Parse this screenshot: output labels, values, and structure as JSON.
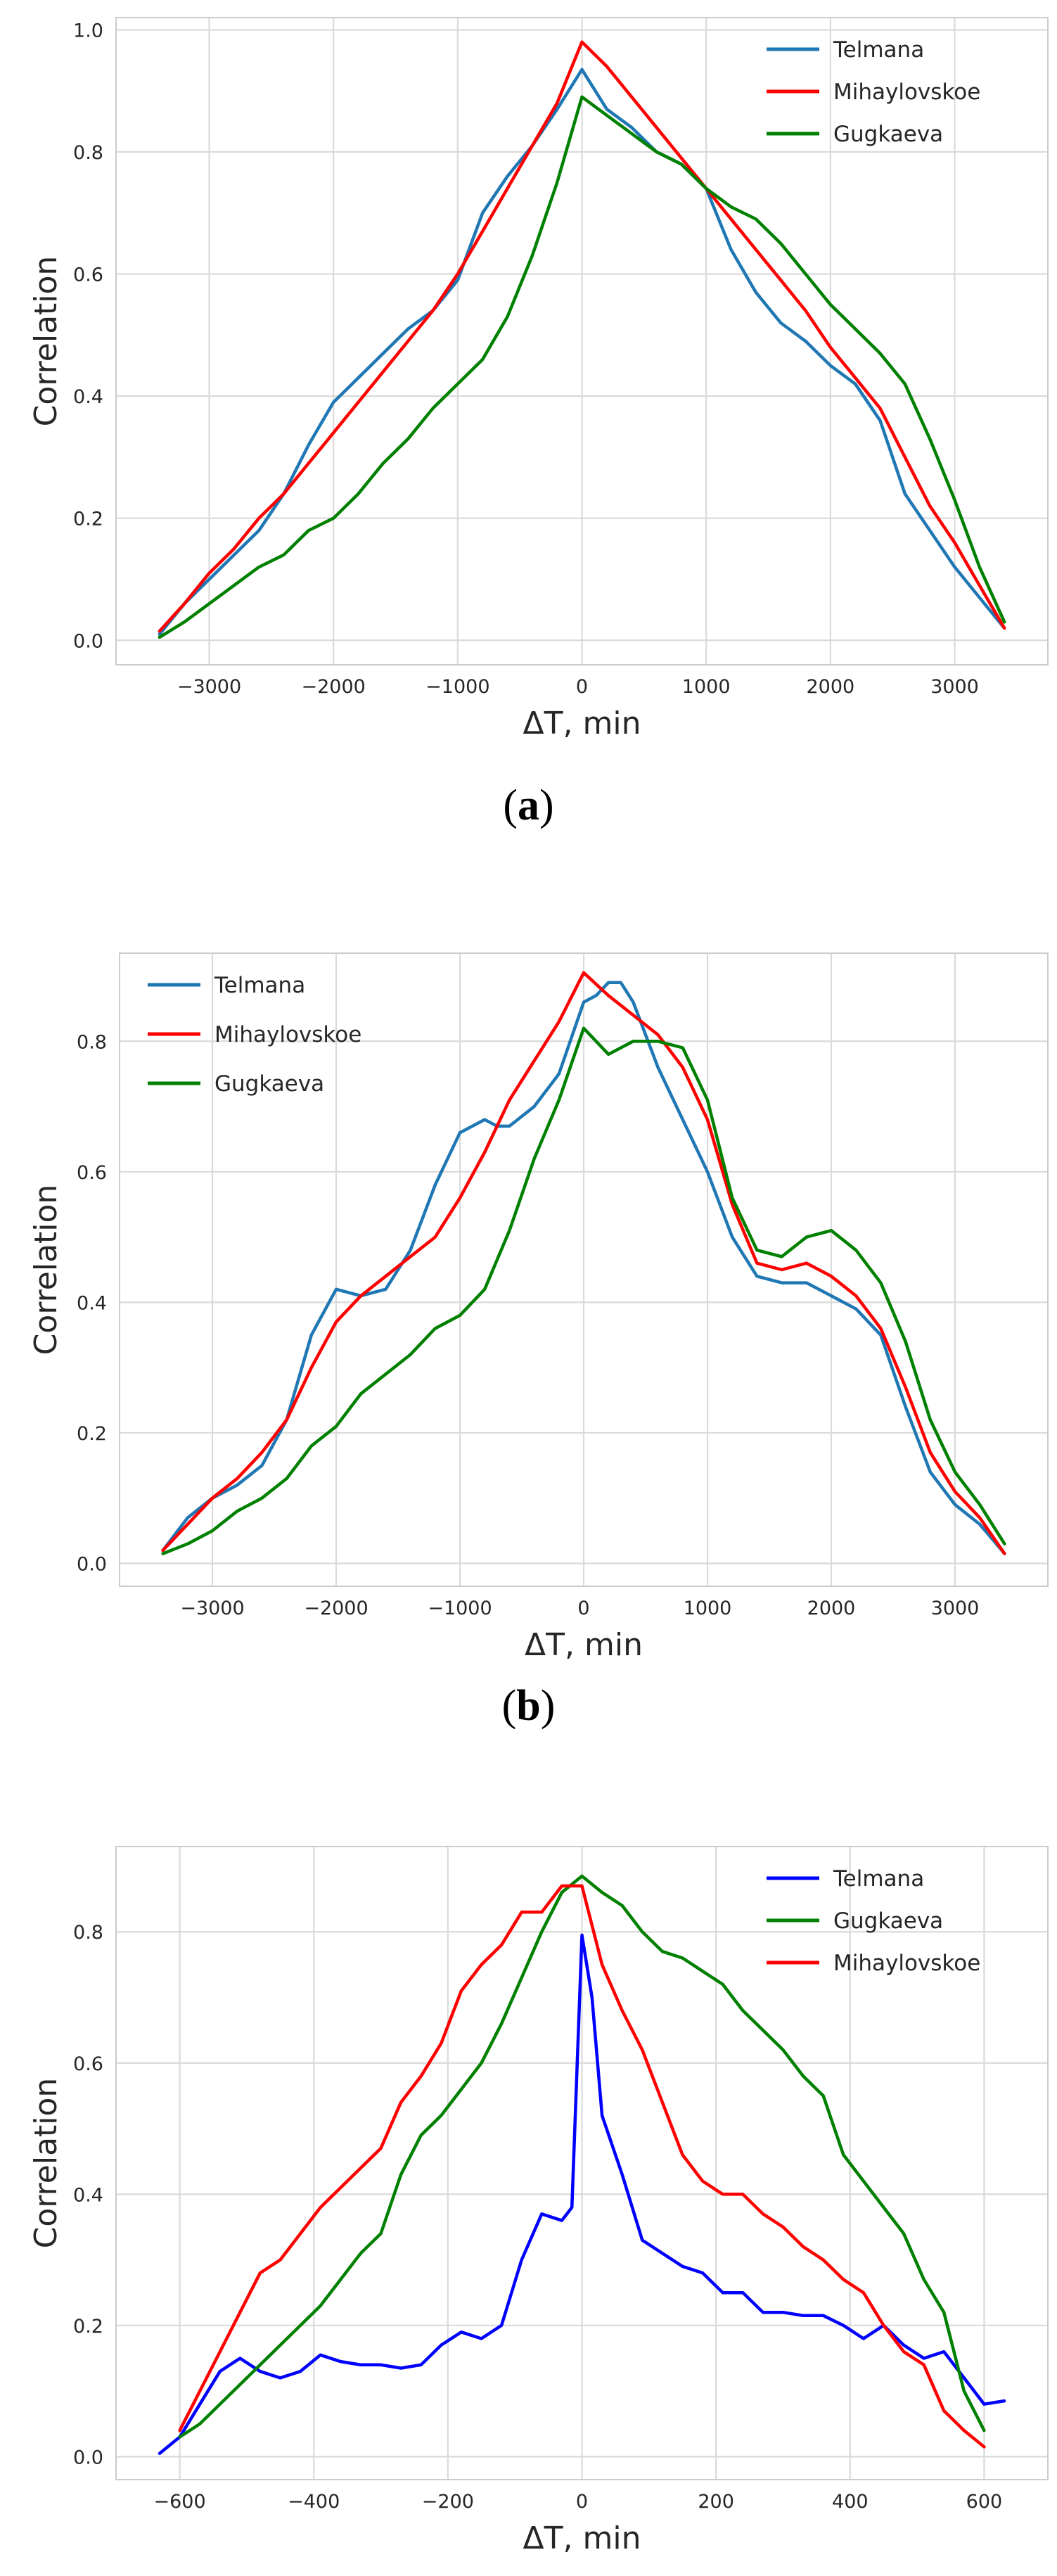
{
  "chart_data": [
    {
      "id": "a",
      "type": "line",
      "caption_letter": "a",
      "xlabel": "ΔT, min",
      "ylabel": "Correlation",
      "xlim": [
        -3750,
        3750
      ],
      "ylim": [
        -0.04,
        1.02
      ],
      "xticks": [
        -3000,
        -2000,
        -1000,
        0,
        1000,
        2000,
        3000
      ],
      "xtick_labels": [
        "−3000",
        "−2000",
        "−1000",
        "0",
        "1000",
        "2000",
        "3000"
      ],
      "yticks": [
        0.0,
        0.2,
        0.4,
        0.6,
        0.8,
        1.0
      ],
      "ytick_labels": [
        "0.0",
        "0.2",
        "0.4",
        "0.6",
        "0.8",
        "1.0"
      ],
      "grid": true,
      "legend_position": "top-right",
      "series": [
        {
          "name": "Telmana",
          "color": "#1f77b4",
          "x": [
            -3400,
            -3200,
            -3000,
            -2800,
            -2600,
            -2400,
            -2200,
            -2000,
            -1800,
            -1600,
            -1400,
            -1200,
            -1000,
            -800,
            -600,
            -400,
            -200,
            0,
            200,
            400,
            600,
            800,
            1000,
            1200,
            1400,
            1600,
            1800,
            2000,
            2200,
            2400,
            2600,
            2800,
            3000,
            3200,
            3400
          ],
          "values": [
            0.01,
            0.06,
            0.1,
            0.14,
            0.18,
            0.24,
            0.32,
            0.39,
            0.43,
            0.47,
            0.51,
            0.54,
            0.59,
            0.7,
            0.76,
            0.81,
            0.87,
            0.935,
            0.87,
            0.84,
            0.8,
            0.78,
            0.74,
            0.64,
            0.57,
            0.52,
            0.49,
            0.45,
            0.42,
            0.36,
            0.24,
            0.18,
            0.12,
            0.07,
            0.02
          ]
        },
        {
          "name": "Mihaylovskoe",
          "color": "#ff0000",
          "x": [
            -3400,
            -3200,
            -3000,
            -2800,
            -2600,
            -2400,
            -2200,
            -2000,
            -1800,
            -1600,
            -1400,
            -1200,
            -1000,
            -800,
            -600,
            -400,
            -200,
            0,
            200,
            400,
            600,
            800,
            1000,
            1200,
            1400,
            1600,
            1800,
            2000,
            2200,
            2400,
            2600,
            2800,
            3000,
            3200,
            3400
          ],
          "values": [
            0.015,
            0.06,
            0.11,
            0.15,
            0.2,
            0.24,
            0.29,
            0.34,
            0.39,
            0.44,
            0.49,
            0.54,
            0.6,
            0.67,
            0.74,
            0.81,
            0.88,
            0.98,
            0.94,
            0.89,
            0.84,
            0.79,
            0.74,
            0.69,
            0.64,
            0.59,
            0.54,
            0.48,
            0.43,
            0.38,
            0.3,
            0.22,
            0.16,
            0.09,
            0.02
          ]
        },
        {
          "name": "Gugkaeva",
          "color": "#008000",
          "x": [
            -3400,
            -3200,
            -3000,
            -2800,
            -2600,
            -2400,
            -2200,
            -2000,
            -1800,
            -1600,
            -1400,
            -1200,
            -1000,
            -800,
            -600,
            -400,
            -200,
            0,
            200,
            400,
            600,
            800,
            1000,
            1200,
            1400,
            1600,
            1800,
            2000,
            2200,
            2400,
            2600,
            2800,
            3000,
            3200,
            3400
          ],
          "values": [
            0.005,
            0.03,
            0.06,
            0.09,
            0.12,
            0.14,
            0.18,
            0.2,
            0.24,
            0.29,
            0.33,
            0.38,
            0.42,
            0.46,
            0.53,
            0.63,
            0.75,
            0.89,
            0.86,
            0.83,
            0.8,
            0.78,
            0.74,
            0.71,
            0.69,
            0.65,
            0.6,
            0.55,
            0.51,
            0.47,
            0.42,
            0.33,
            0.23,
            0.12,
            0.03
          ]
        }
      ]
    },
    {
      "id": "b",
      "type": "line",
      "caption_letter": "b",
      "xlabel": "ΔT, min",
      "ylabel": "Correlation",
      "xlim": [
        -3750,
        3750
      ],
      "ylim": [
        -0.035,
        0.935
      ],
      "xticks": [
        -3000,
        -2000,
        -1000,
        0,
        1000,
        2000,
        3000
      ],
      "xtick_labels": [
        "−3000",
        "−2000",
        "−1000",
        "0",
        "1000",
        "2000",
        "3000"
      ],
      "yticks": [
        0.0,
        0.2,
        0.4,
        0.6,
        0.8
      ],
      "ytick_labels": [
        "0.0",
        "0.2",
        "0.4",
        "0.6",
        "0.8"
      ],
      "grid": true,
      "legend_position": "top-left",
      "series": [
        {
          "name": "Telmana",
          "color": "#1f77b4",
          "x": [
            -3400,
            -3200,
            -3000,
            -2800,
            -2600,
            -2400,
            -2200,
            -2000,
            -1800,
            -1600,
            -1400,
            -1200,
            -1000,
            -800,
            -700,
            -600,
            -400,
            -200,
            0,
            100,
            200,
            300,
            400,
            600,
            800,
            1000,
            1200,
            1400,
            1600,
            1800,
            2000,
            2200,
            2400,
            2600,
            2800,
            3000,
            3200,
            3400
          ],
          "values": [
            0.02,
            0.07,
            0.1,
            0.12,
            0.15,
            0.22,
            0.35,
            0.42,
            0.41,
            0.42,
            0.48,
            0.58,
            0.66,
            0.68,
            0.67,
            0.67,
            0.7,
            0.75,
            0.86,
            0.87,
            0.89,
            0.89,
            0.86,
            0.76,
            0.68,
            0.6,
            0.5,
            0.44,
            0.43,
            0.43,
            0.41,
            0.39,
            0.35,
            0.24,
            0.14,
            0.09,
            0.06,
            0.015
          ]
        },
        {
          "name": "Mihaylovskoe",
          "color": "#ff0000",
          "x": [
            -3400,
            -3200,
            -3000,
            -2800,
            -2600,
            -2400,
            -2200,
            -2000,
            -1800,
            -1600,
            -1400,
            -1200,
            -1000,
            -800,
            -600,
            -400,
            -200,
            0,
            200,
            400,
            600,
            800,
            1000,
            1200,
            1400,
            1600,
            1800,
            2000,
            2200,
            2400,
            2600,
            2800,
            3000,
            3200,
            3400
          ],
          "values": [
            0.02,
            0.06,
            0.1,
            0.13,
            0.17,
            0.22,
            0.3,
            0.37,
            0.41,
            0.44,
            0.47,
            0.5,
            0.56,
            0.63,
            0.71,
            0.77,
            0.83,
            0.905,
            0.87,
            0.84,
            0.81,
            0.76,
            0.68,
            0.55,
            0.46,
            0.45,
            0.46,
            0.44,
            0.41,
            0.36,
            0.27,
            0.17,
            0.11,
            0.07,
            0.015
          ]
        },
        {
          "name": "Gugkaeva",
          "color": "#008000",
          "x": [
            -3400,
            -3200,
            -3000,
            -2800,
            -2600,
            -2400,
            -2200,
            -2000,
            -1800,
            -1600,
            -1400,
            -1200,
            -1000,
            -800,
            -600,
            -400,
            -200,
            0,
            200,
            400,
            600,
            800,
            1000,
            1200,
            1400,
            1600,
            1800,
            2000,
            2200,
            2400,
            2600,
            2800,
            3000,
            3200,
            3400
          ],
          "values": [
            0.015,
            0.03,
            0.05,
            0.08,
            0.1,
            0.13,
            0.18,
            0.21,
            0.26,
            0.29,
            0.32,
            0.36,
            0.38,
            0.42,
            0.51,
            0.62,
            0.71,
            0.82,
            0.78,
            0.8,
            0.8,
            0.79,
            0.71,
            0.56,
            0.48,
            0.47,
            0.5,
            0.51,
            0.48,
            0.43,
            0.34,
            0.22,
            0.14,
            0.09,
            0.03
          ]
        }
      ]
    },
    {
      "id": "c",
      "type": "line",
      "xlabel": "ΔT, min",
      "ylabel": "Correlation",
      "xlim": [
        -695,
        695
      ],
      "ylim": [
        -0.035,
        0.93
      ],
      "xticks": [
        -600,
        -400,
        -200,
        0,
        200,
        400,
        600
      ],
      "xtick_labels": [
        "−600",
        "−400",
        "−200",
        "0",
        "200",
        "400",
        "600"
      ],
      "yticks": [
        0.0,
        0.2,
        0.4,
        0.6,
        0.8
      ],
      "ytick_labels": [
        "0.0",
        "0.2",
        "0.4",
        "0.6",
        "0.8"
      ],
      "grid": true,
      "legend_position": "top-right",
      "series": [
        {
          "name": "Telmana",
          "color": "#0000ff",
          "x": [
            -630,
            -600,
            -570,
            -540,
            -510,
            -480,
            -450,
            -420,
            -390,
            -360,
            -330,
            -300,
            -270,
            -240,
            -210,
            -180,
            -150,
            -120,
            -90,
            -60,
            -30,
            -15,
            0,
            15,
            30,
            60,
            90,
            120,
            150,
            180,
            210,
            240,
            270,
            300,
            330,
            360,
            390,
            420,
            450,
            480,
            510,
            540,
            570,
            600,
            630
          ],
          "values": [
            0.005,
            0.03,
            0.08,
            0.13,
            0.15,
            0.13,
            0.12,
            0.13,
            0.155,
            0.145,
            0.14,
            0.14,
            0.135,
            0.14,
            0.17,
            0.19,
            0.18,
            0.2,
            0.3,
            0.37,
            0.36,
            0.38,
            0.795,
            0.7,
            0.52,
            0.43,
            0.33,
            0.31,
            0.29,
            0.28,
            0.25,
            0.25,
            0.22,
            0.22,
            0.215,
            0.215,
            0.2,
            0.18,
            0.2,
            0.17,
            0.15,
            0.16,
            0.12,
            0.08,
            0.085
          ]
        },
        {
          "name": "Gugkaeva",
          "color": "#008000",
          "x": [
            -600,
            -570,
            -540,
            -510,
            -480,
            -450,
            -420,
            -390,
            -360,
            -330,
            -300,
            -270,
            -240,
            -210,
            -180,
            -150,
            -120,
            -90,
            -60,
            -30,
            0,
            30,
            60,
            90,
            120,
            150,
            180,
            210,
            240,
            270,
            300,
            330,
            360,
            390,
            420,
            450,
            480,
            510,
            540,
            570,
            600
          ],
          "values": [
            0.03,
            0.05,
            0.08,
            0.11,
            0.14,
            0.17,
            0.2,
            0.23,
            0.27,
            0.31,
            0.34,
            0.43,
            0.49,
            0.52,
            0.56,
            0.6,
            0.66,
            0.73,
            0.8,
            0.86,
            0.885,
            0.86,
            0.84,
            0.8,
            0.77,
            0.76,
            0.74,
            0.72,
            0.68,
            0.65,
            0.62,
            0.58,
            0.55,
            0.46,
            0.42,
            0.38,
            0.34,
            0.27,
            0.22,
            0.1,
            0.04
          ]
        },
        {
          "name": "Mihaylovskoe",
          "color": "#ff0000",
          "x": [
            -600,
            -570,
            -540,
            -510,
            -480,
            -450,
            -420,
            -390,
            -360,
            -330,
            -300,
            -270,
            -240,
            -210,
            -180,
            -150,
            -120,
            -90,
            -60,
            -30,
            0,
            30,
            60,
            90,
            120,
            150,
            180,
            210,
            240,
            270,
            300,
            330,
            360,
            390,
            420,
            450,
            480,
            510,
            540,
            570,
            600
          ],
          "values": [
            0.04,
            0.1,
            0.16,
            0.22,
            0.28,
            0.3,
            0.34,
            0.38,
            0.41,
            0.44,
            0.47,
            0.54,
            0.58,
            0.63,
            0.71,
            0.75,
            0.78,
            0.83,
            0.83,
            0.87,
            0.87,
            0.75,
            0.68,
            0.62,
            0.54,
            0.46,
            0.42,
            0.4,
            0.4,
            0.37,
            0.35,
            0.32,
            0.3,
            0.27,
            0.25,
            0.2,
            0.16,
            0.14,
            0.07,
            0.04,
            0.015
          ]
        }
      ]
    }
  ]
}
